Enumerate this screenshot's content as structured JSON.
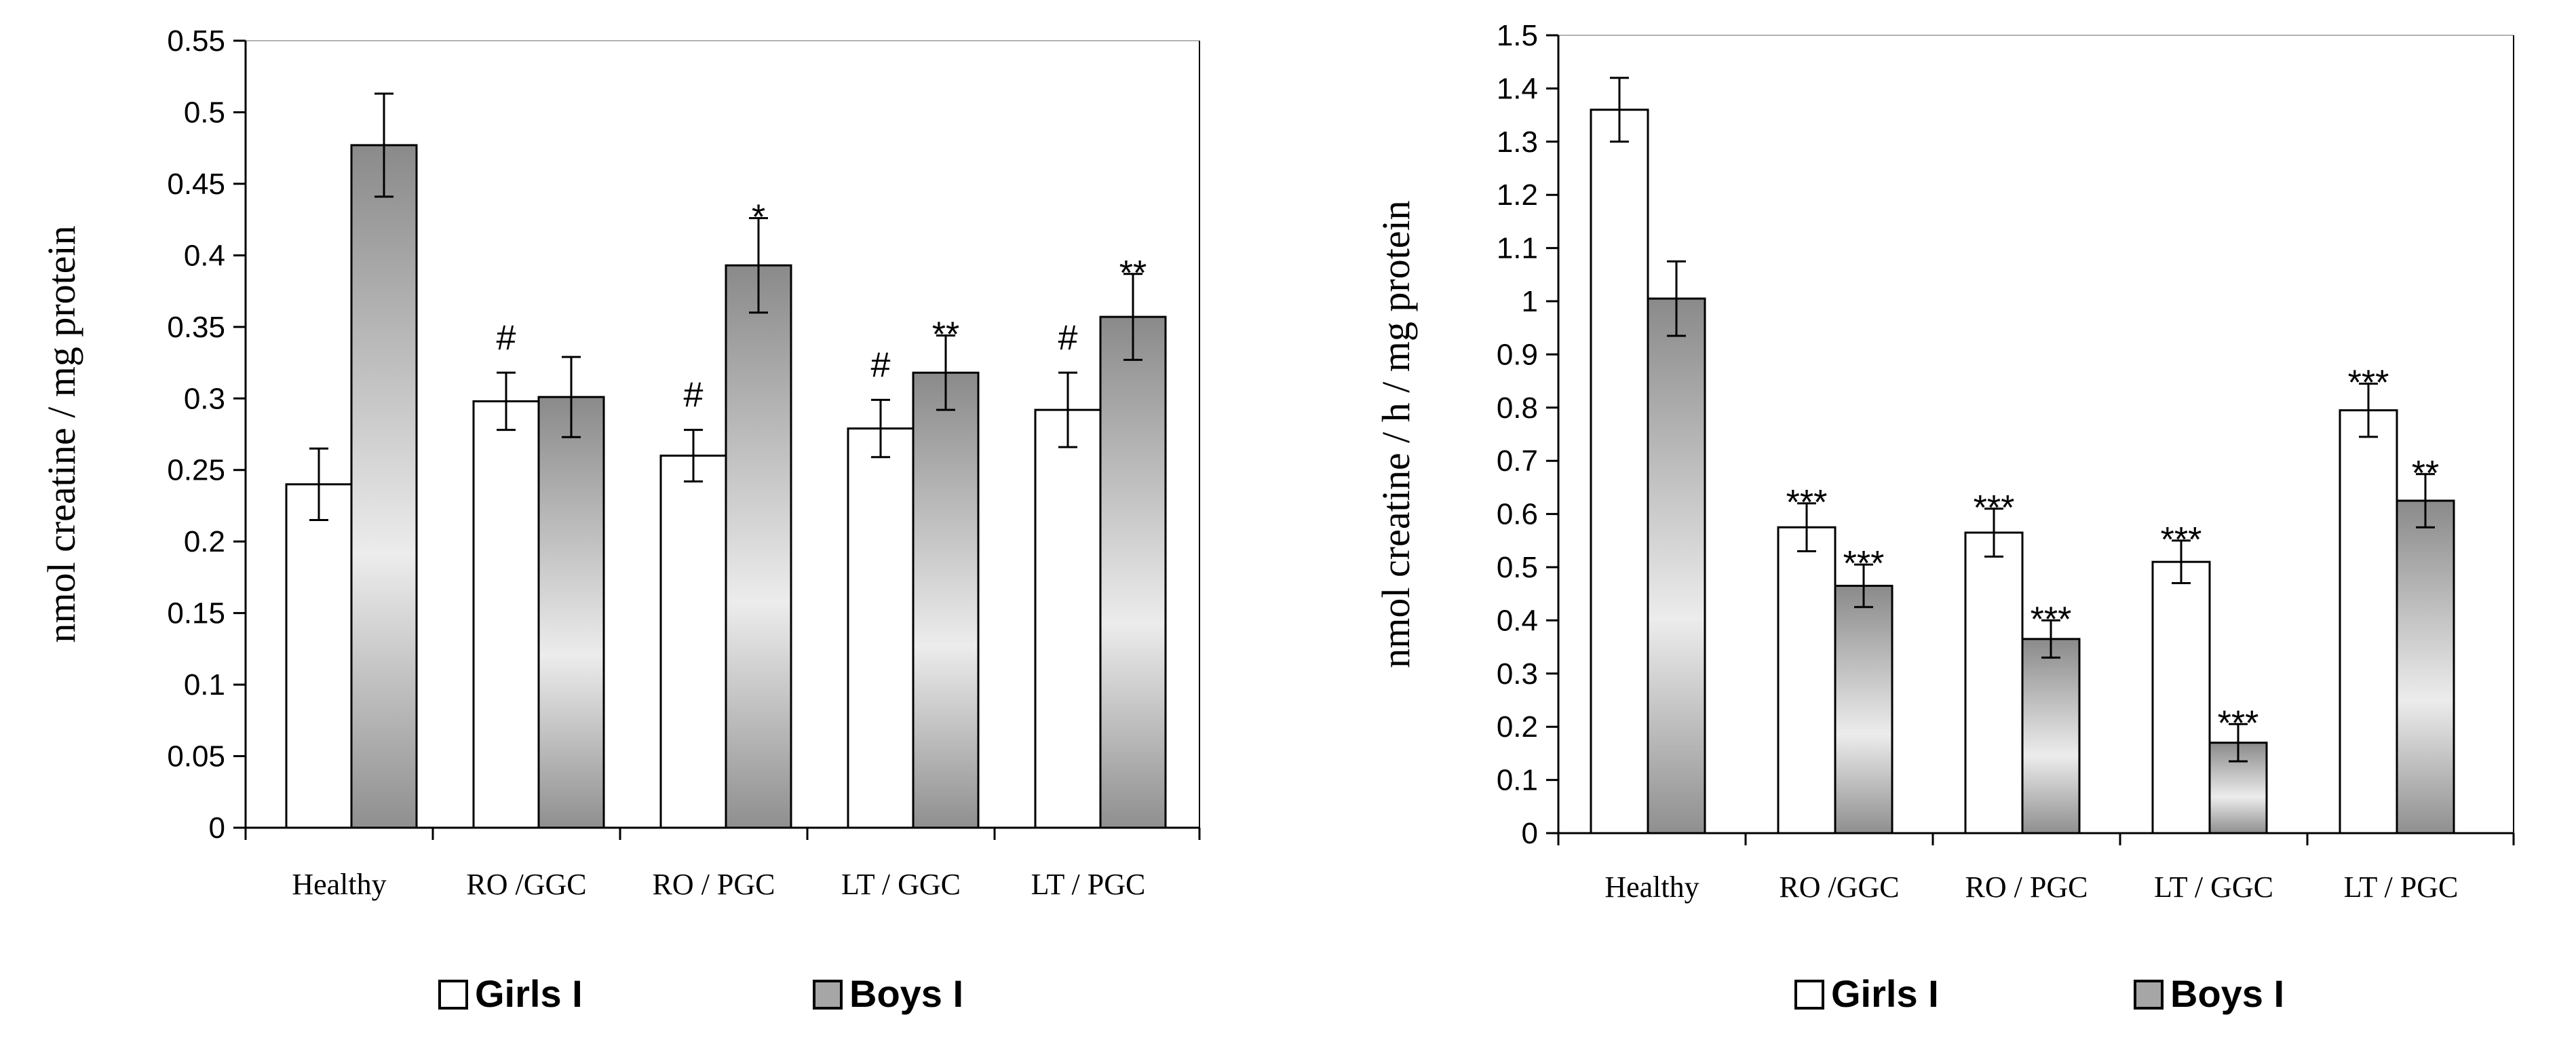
{
  "chart_data": [
    {
      "type": "bar",
      "title": "",
      "xlabel": "",
      "ylabel": "nmol creatine / mg protein",
      "ylim": [
        0,
        0.55
      ],
      "yticks": [
        0,
        0.05,
        0.1,
        0.15,
        0.2,
        0.25,
        0.3,
        0.35,
        0.4,
        0.45,
        0.5,
        0.55
      ],
      "ytick_labels": [
        "0",
        "0.05",
        "0.1",
        "0.15",
        "0.2",
        "0.25",
        "0.3",
        "0.35",
        "0.4",
        "0.45",
        "0.5",
        "0.55"
      ],
      "grid": false,
      "categories": [
        "Healthy",
        "RO /GGC",
        "RO / PGC",
        "LT / GGC",
        "LT / PGC"
      ],
      "series": [
        {
          "name": "Girls I",
          "style": "white",
          "values": [
            0.24,
            0.298,
            0.26,
            0.279,
            0.292
          ],
          "errors": [
            0.025,
            0.02,
            0.018,
            0.02,
            0.026
          ],
          "marks": [
            "",
            "#",
            "#",
            "#",
            "#"
          ]
        },
        {
          "name": "Boys I",
          "style": "gradient",
          "values": [
            0.477,
            0.301,
            0.393,
            0.318,
            0.357
          ],
          "errors": [
            0.036,
            0.028,
            0.033,
            0.026,
            0.03
          ],
          "marks": [
            "",
            "",
            "*",
            "**",
            "**"
          ]
        }
      ],
      "legend": [
        "Girls I",
        "Boys I"
      ],
      "legend_position": "bottom"
    },
    {
      "type": "bar",
      "title": "",
      "xlabel": "",
      "ylabel": "nmol creatine / h / mg protein",
      "ylim": [
        0,
        1.5
      ],
      "yticks": [
        0,
        0.1,
        0.2,
        0.3,
        0.4,
        0.5,
        0.6,
        0.7,
        0.8,
        0.9,
        1,
        1.1,
        1.2,
        1.3,
        1.4,
        1.5
      ],
      "ytick_labels": [
        "0",
        "0.1",
        "0.2",
        "0.3",
        "0.4",
        "0.5",
        "0.6",
        "0.7",
        "0.8",
        "0.9",
        "1",
        "1.1",
        "1.2",
        "1.3",
        "1.4",
        "1.5"
      ],
      "grid": false,
      "categories": [
        "Healthy",
        "RO /GGC",
        "RO / PGC",
        "LT / GGC",
        "LT / PGC"
      ],
      "series": [
        {
          "name": "Girls I",
          "style": "white",
          "values": [
            1.36,
            0.575,
            0.565,
            0.51,
            0.795
          ],
          "errors": [
            0.06,
            0.045,
            0.045,
            0.04,
            0.05
          ],
          "marks": [
            "",
            "***",
            "***",
            "***",
            "***"
          ]
        },
        {
          "name": "Boys I",
          "style": "gradient",
          "values": [
            1.005,
            0.465,
            0.365,
            0.17,
            0.625
          ],
          "errors": [
            0.07,
            0.04,
            0.035,
            0.035,
            0.05
          ],
          "marks": [
            "",
            "***",
            "***",
            "***",
            "**"
          ]
        }
      ],
      "legend": [
        "Girls I",
        "Boys I"
      ],
      "legend_position": "bottom"
    }
  ]
}
